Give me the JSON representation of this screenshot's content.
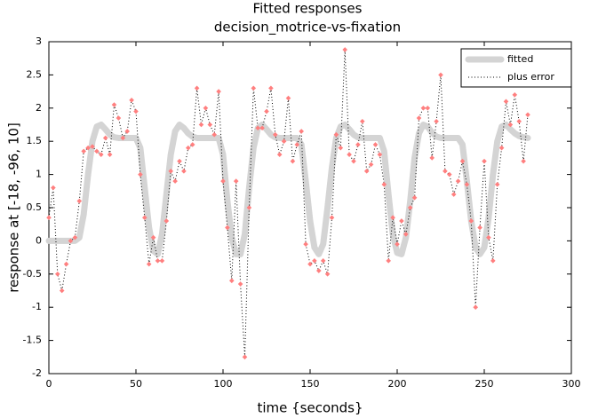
{
  "chart_data": {
    "type": "line",
    "title": "Fitted responses",
    "subtitle": "decision_motrice-vs-fixation",
    "x_label": "time {seconds}",
    "y_label": "response at [-18, -96, 10]",
    "x": [
      0,
      2.5,
      5,
      7.5,
      10,
      12.5,
      15,
      17.5,
      20,
      22.5,
      25,
      27.5,
      30,
      32.5,
      35,
      37.5,
      40,
      42.5,
      45,
      47.5,
      50,
      52.5,
      55,
      57.5,
      60,
      62.5,
      65,
      67.5,
      70,
      72.5,
      75,
      77.5,
      80,
      82.5,
      85,
      87.5,
      90,
      92.5,
      95,
      97.5,
      100,
      102.5,
      105,
      107.5,
      110,
      112.5,
      115,
      117.5,
      120,
      122.5,
      125,
      127.5,
      130,
      132.5,
      135,
      137.5,
      140,
      142.5,
      145,
      147.5,
      150,
      152.5,
      155,
      157.5,
      160,
      162.5,
      165,
      167.5,
      170,
      172.5,
      175,
      177.5,
      180,
      182.5,
      185,
      187.5,
      190,
      192.5,
      195,
      197.5,
      200,
      202.5,
      205,
      207.5,
      210,
      212.5,
      215,
      217.5,
      220,
      222.5,
      225,
      227.5,
      230,
      232.5,
      235,
      237.5,
      240,
      242.5,
      245,
      247.5,
      250,
      252.5,
      255,
      257.5,
      260,
      262.5,
      265,
      267.5,
      270,
      272.5,
      275
    ],
    "series": [
      {
        "name": "fitted",
        "color": "#d4d4d4",
        "line_style": "solid",
        "values": [
          0,
          0,
          0,
          0,
          0,
          0,
          0,
          0.05,
          0.4,
          1.0,
          1.5,
          1.72,
          1.75,
          1.68,
          1.6,
          1.56,
          1.55,
          1.55,
          1.55,
          1.55,
          1.55,
          1.4,
          0.8,
          0.2,
          -0.15,
          -0.2,
          0.1,
          0.7,
          1.3,
          1.65,
          1.75,
          1.7,
          1.62,
          1.57,
          1.55,
          1.55,
          1.55,
          1.55,
          1.55,
          1.55,
          1.3,
          0.6,
          0.05,
          -0.2,
          -0.2,
          0.1,
          0.8,
          1.4,
          1.7,
          1.75,
          1.68,
          1.6,
          1.56,
          1.55,
          1.55,
          1.55,
          1.55,
          1.55,
          1.45,
          0.9,
          0.3,
          -0.1,
          -0.2,
          -0.05,
          0.5,
          1.1,
          1.55,
          1.72,
          1.75,
          1.68,
          1.6,
          1.56,
          1.55,
          1.55,
          1.55,
          1.55,
          1.55,
          1.35,
          0.7,
          0.1,
          -0.18,
          -0.2,
          0.05,
          0.6,
          1.25,
          1.62,
          1.75,
          1.72,
          1.63,
          1.57,
          1.55,
          1.55,
          1.55,
          1.55,
          1.55,
          1.45,
          0.9,
          0.3,
          -0.1,
          -0.2,
          -0.1,
          0.35,
          1.0,
          1.5,
          1.72,
          1.75,
          1.68,
          1.62,
          1.58,
          1.56,
          1.55
        ]
      },
      {
        "name": "plus error",
        "color": "#000000",
        "line_style": "dotted",
        "marker_color": "#ff7f7f",
        "values": [
          0.35,
          0.8,
          -0.5,
          -0.75,
          -0.35,
          0,
          0.05,
          0.6,
          1.35,
          1.4,
          1.42,
          1.35,
          1.3,
          1.55,
          1.3,
          2.05,
          1.85,
          1.55,
          1.65,
          2.12,
          1.95,
          1.0,
          0.35,
          -0.35,
          0.05,
          -0.3,
          -0.3,
          0.3,
          1.05,
          0.9,
          1.2,
          1.05,
          1.4,
          1.45,
          2.3,
          1.75,
          2.0,
          1.75,
          1.6,
          2.25,
          0.9,
          0.2,
          -0.6,
          0.9,
          -0.65,
          -1.75,
          0.5,
          2.3,
          1.7,
          1.7,
          1.95,
          2.3,
          1.6,
          1.3,
          1.5,
          2.15,
          1.2,
          1.45,
          1.65,
          -0.05,
          -0.35,
          -0.3,
          -0.45,
          -0.3,
          -0.5,
          0.35,
          1.6,
          1.4,
          2.88,
          1.3,
          1.2,
          1.45,
          1.8,
          1.05,
          1.15,
          1.45,
          1.3,
          0.85,
          -0.3,
          0.35,
          -0.05,
          0.3,
          0.1,
          0.5,
          0.65,
          1.85,
          2.0,
          2.0,
          1.25,
          1.8,
          2.5,
          1.05,
          1.0,
          0.7,
          0.9,
          1.2,
          0.85,
          0.3,
          -1.0,
          0.2,
          1.2,
          0.05,
          -0.3,
          0.85,
          1.4,
          2.1,
          1.75,
          2.2,
          1.8,
          1.2,
          1.9
        ]
      }
    ],
    "xlim": [
      0,
      300
    ],
    "xticks": [
      0,
      50,
      100,
      150,
      200,
      250,
      300
    ],
    "ylim": [
      -2,
      3
    ],
    "yticks": [
      -2,
      -1.5,
      -1,
      -0.5,
      0,
      0.5,
      1,
      1.5,
      2,
      2.5,
      3
    ],
    "grid": false,
    "legend": "top-right"
  }
}
